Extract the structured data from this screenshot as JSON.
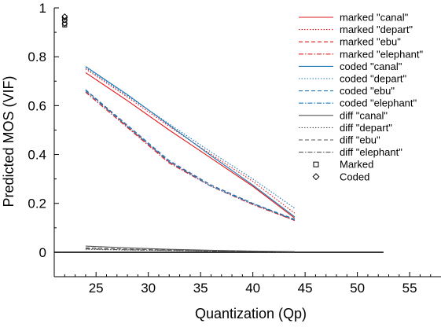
{
  "chart_data": {
    "type": "line",
    "title": "",
    "xlabel": "Quantization (Qp)",
    "ylabel": "Predicted MOS (VIF)",
    "xlim": [
      21,
      58
    ],
    "ylim": [
      -0.1,
      1.0
    ],
    "x_ticks": [
      "25",
      "30",
      "35",
      "40",
      "45",
      "50",
      "55"
    ],
    "y_ticks": [
      "0",
      "0.2",
      "0.4",
      "0.6",
      "0.8",
      "1"
    ],
    "grid": false,
    "legend_position": "top-right",
    "series": [
      {
        "name": "marked \"canal\"",
        "color": "#e31a1c",
        "dash": "solid",
        "x": [
          24,
          28,
          32,
          36,
          40,
          44
        ],
        "y": [
          0.735,
          0.62,
          0.5,
          0.385,
          0.27,
          0.14
        ]
      },
      {
        "name": "marked \"depart\"",
        "color": "#e31a1c",
        "dash": "dotted",
        "x": [
          24,
          28,
          32,
          36,
          40,
          44
        ],
        "y": [
          0.75,
          0.635,
          0.515,
          0.4,
          0.29,
          0.16
        ]
      },
      {
        "name": "marked \"ebu\"",
        "color": "#e31a1c",
        "dash": "dashed",
        "x": [
          24,
          28,
          32,
          36,
          40,
          44
        ],
        "y": [
          0.665,
          0.515,
          0.37,
          0.275,
          0.2,
          0.13
        ]
      },
      {
        "name": "marked \"elephant\"",
        "color": "#e31a1c",
        "dash": "dashdot",
        "x": [
          24,
          28,
          32,
          36,
          40,
          44
        ],
        "y": [
          0.655,
          0.51,
          0.365,
          0.27,
          0.195,
          0.13
        ]
      },
      {
        "name": "coded \"canal\"",
        "color": "#1f77b4",
        "dash": "solid",
        "x": [
          24,
          28,
          32,
          36,
          40,
          44
        ],
        "y": [
          0.76,
          0.645,
          0.52,
          0.395,
          0.275,
          0.145
        ]
      },
      {
        "name": "coded \"depart\"",
        "color": "#1f77b4",
        "dash": "dotted",
        "x": [
          24,
          28,
          32,
          36,
          40,
          44
        ],
        "y": [
          0.755,
          0.64,
          0.525,
          0.41,
          0.3,
          0.18
        ]
      },
      {
        "name": "coded \"ebu\"",
        "color": "#1f77b4",
        "dash": "dashed",
        "x": [
          24,
          28,
          32,
          36,
          40,
          44
        ],
        "y": [
          0.665,
          0.52,
          0.375,
          0.275,
          0.2,
          0.135
        ]
      },
      {
        "name": "coded \"elephant\"",
        "color": "#1f77b4",
        "dash": "dashdot",
        "x": [
          24,
          28,
          32,
          36,
          40,
          44
        ],
        "y": [
          0.66,
          0.515,
          0.37,
          0.27,
          0.198,
          0.132
        ]
      },
      {
        "name": "diff \"canal\"",
        "color": "#555555",
        "dash": "solid",
        "x": [
          24,
          28,
          32,
          36,
          40,
          44
        ],
        "y": [
          0.025,
          0.018,
          0.012,
          0.008,
          0.005,
          0.003
        ]
      },
      {
        "name": "diff \"depart\"",
        "color": "#555555",
        "dash": "dotted",
        "x": [
          24,
          28,
          32,
          36,
          40,
          44
        ],
        "y": [
          0.012,
          0.009,
          0.007,
          0.005,
          0.003,
          0.002
        ]
      },
      {
        "name": "diff \"ebu\"",
        "color": "#555555",
        "dash": "dashed",
        "x": [
          24,
          28,
          32,
          36,
          40,
          44
        ],
        "y": [
          0.018,
          0.013,
          0.009,
          0.006,
          0.004,
          0.002
        ]
      },
      {
        "name": "diff \"elephant\"",
        "color": "#555555",
        "dash": "dashdot",
        "x": [
          24,
          28,
          32,
          36,
          40,
          44
        ],
        "y": [
          0.014,
          0.01,
          0.008,
          0.005,
          0.003,
          0.002
        ]
      }
    ],
    "markers": [
      {
        "name": "Marked",
        "shape": "square",
        "color": "#000000",
        "points": [
          {
            "x": 22,
            "y": 0.93
          },
          {
            "x": 22,
            "y": 0.945
          },
          {
            "x": 22,
            "y": 0.955
          },
          {
            "x": 22,
            "y": 0.96
          }
        ]
      },
      {
        "name": "Coded",
        "shape": "diamond",
        "color": "#000000",
        "points": [
          {
            "x": 22,
            "y": 0.935
          },
          {
            "x": 22,
            "y": 0.95
          },
          {
            "x": 22,
            "y": 0.96
          },
          {
            "x": 22,
            "y": 0.965
          }
        ]
      }
    ],
    "reference_lines": [
      {
        "y": 0,
        "x_from": 21,
        "x_to": 52.5,
        "color": "#000000"
      }
    ]
  }
}
